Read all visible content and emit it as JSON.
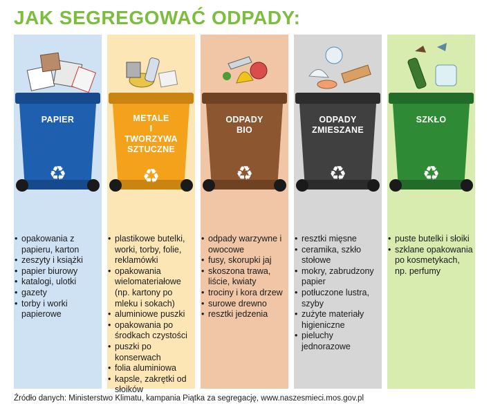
{
  "title": "JAK SEGREGOWAĆ ODPADY:",
  "bins": [
    {
      "id": "papier",
      "label": "PAPIER",
      "bg": "#cfe2f3",
      "bin_color": "#1f5fb0",
      "bin_dark": "#174a8c",
      "items": [
        "opakowania z papieru, karton",
        "zeszyty i książki",
        "papier biurowy",
        "katalogi, ulotki",
        "gazety",
        "torby i worki papierowe"
      ]
    },
    {
      "id": "metale",
      "label": "METALE\nI\nTWORZYWA\nSZTUCZNE",
      "bg": "#fde6b6",
      "bin_color": "#f4a21b",
      "bin_dark": "#c98411",
      "items": [
        "plastikowe butelki, worki, torby, folie, reklamówki",
        "opakowania wielomateriałowe (np. kartony po mleku i sokach)",
        "aluminiowe puszki",
        "opakowania po środkach czystości",
        "puszki po konserwach",
        "folia aluminiowa",
        "kapsle, zakrętki od słoików"
      ]
    },
    {
      "id": "bio",
      "label": "ODPADY\nBIO",
      "bg": "#f1c6a6",
      "bin_color": "#8c5630",
      "bin_dark": "#6e4223",
      "items": [
        "odpady warzywne i owocowe",
        "fusy, skorupki jaj",
        "skoszona trawa, liście, kwiaty",
        "trociny i kora drzew",
        "surowe drewno",
        "resztki jedzenia"
      ]
    },
    {
      "id": "zmieszane",
      "label": "ODPADY\nZMIESZANE",
      "bg": "#d6d6d6",
      "bin_color": "#404040",
      "bin_dark": "#2c2c2c",
      "items": [
        "resztki mięsne",
        "ceramika, szkło stołowe",
        "mokry, zabrudzony papier",
        "potłuczone lustra, szyby",
        "zużyte materiały higieniczne",
        "pieluchy jednorazowe"
      ]
    },
    {
      "id": "szklo",
      "label": "SZKŁO",
      "bg": "#d7ecae",
      "bin_color": "#2f8a35",
      "bin_dark": "#236b28",
      "items": [
        "puste butelki i słoiki",
        "szklane opakowania po kosmetykach, np. perfumy"
      ]
    }
  ],
  "recycle_symbol": "♻",
  "icon": "recycle-icon",
  "source": "Źródło danych: Ministerstwo Klimatu, kampania Piątka za segregację, www.naszesmieci.mos.gov.pl"
}
